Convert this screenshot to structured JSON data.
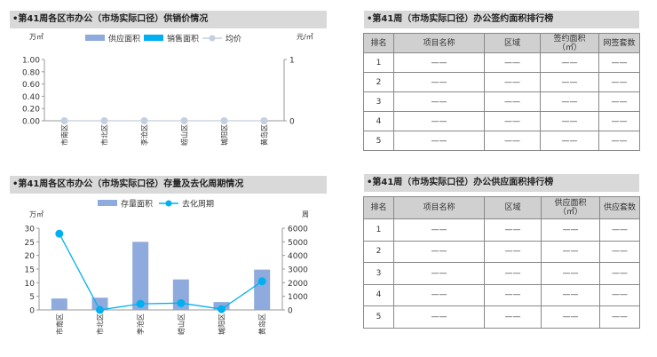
{
  "sections": {
    "top_left_title": "•第41周各区市办公（市场实际口径）供销价情况",
    "bottom_left_title": "•第41周各区市办公（市场实际口径）存量及去化周期情况",
    "top_right_title": "•第41周（市场实际口径）办公签约面积排行榜",
    "bottom_right_title": "•第41周（市场实际口径）办公供应面积排行榜"
  },
  "chart_data": [
    {
      "type": "bar",
      "categories": [
        "市南区",
        "市北区",
        "李沧区",
        "崂山区",
        "城阳区",
        "黄岛区"
      ],
      "left_unit": "万㎡",
      "right_unit": "元/㎡",
      "ylim": [
        0,
        1
      ],
      "yticks": [
        "1.00",
        "0.80",
        "0.60",
        "0.40",
        "0.20",
        "0.00"
      ],
      "y2lim": [
        0,
        1
      ],
      "y2ticks": [
        "1",
        "0"
      ],
      "legend_position": "top",
      "series": [
        {
          "name": "供应面积",
          "kind": "bar",
          "axis": "left",
          "color": "#8faadc",
          "values": [
            0,
            0,
            0,
            0,
            0,
            0
          ]
        },
        {
          "name": "销售面积",
          "kind": "bar",
          "axis": "left",
          "color": "#00b0f0",
          "values": [
            0,
            0,
            0,
            0,
            0,
            0
          ]
        },
        {
          "name": "均价",
          "kind": "line",
          "axis": "right",
          "color": "#c5cfe0",
          "values": [
            0,
            0,
            0,
            0,
            0,
            0
          ]
        }
      ]
    },
    {
      "type": "bar",
      "categories": [
        "市南区",
        "市北区",
        "李沧区",
        "崂山区",
        "城阳区",
        "黄岛区"
      ],
      "left_unit": "万㎡",
      "right_unit": "周",
      "ylim": [
        0,
        30
      ],
      "yticks": [
        "30",
        "25",
        "20",
        "15",
        "10",
        "5",
        "0"
      ],
      "y2lim": [
        0,
        6000
      ],
      "y2ticks": [
        "6000",
        "5000",
        "4000",
        "3000",
        "2000",
        "1000",
        "0"
      ],
      "legend_position": "top",
      "series": [
        {
          "name": "存量面积",
          "kind": "bar",
          "axis": "left",
          "color": "#8faadc",
          "values": [
            4.2,
            4.5,
            25,
            11.2,
            2.9,
            14.8
          ]
        },
        {
          "name": "去化周期",
          "kind": "line",
          "axis": "right",
          "color": "#00b0f0",
          "values": [
            5600,
            0,
            450,
            500,
            60,
            2100
          ]
        }
      ]
    }
  ],
  "tables": {
    "signed": {
      "headers": [
        "排名",
        "项目名称",
        "区域",
        "签约面积",
        "（㎡）",
        "网签套数"
      ],
      "rows": [
        {
          "rank": "1",
          "name": "——",
          "area": "——",
          "size": "——",
          "count": "——"
        },
        {
          "rank": "2",
          "name": "——",
          "area": "——",
          "size": "——",
          "count": "——"
        },
        {
          "rank": "3",
          "name": "——",
          "area": "——",
          "size": "——",
          "count": "——"
        },
        {
          "rank": "4",
          "name": "——",
          "area": "——",
          "size": "——",
          "count": "——"
        },
        {
          "rank": "5",
          "name": "——",
          "area": "——",
          "size": "——",
          "count": "——"
        }
      ]
    },
    "supply": {
      "headers": [
        "排名",
        "项目名称",
        "区域",
        "供应面积",
        "（㎡）",
        "供应套数"
      ],
      "rows": [
        {
          "rank": "1",
          "name": "——",
          "area": "——",
          "size": "——",
          "count": "——"
        },
        {
          "rank": "2",
          "name": "——",
          "area": "——",
          "size": "——",
          "count": "——"
        },
        {
          "rank": "3",
          "name": "——",
          "area": "——",
          "size": "——",
          "count": "——"
        },
        {
          "rank": "4",
          "name": "——",
          "area": "——",
          "size": "——",
          "count": "——"
        },
        {
          "rank": "5",
          "name": "——",
          "area": "——",
          "size": "——",
          "count": "——"
        }
      ]
    }
  }
}
